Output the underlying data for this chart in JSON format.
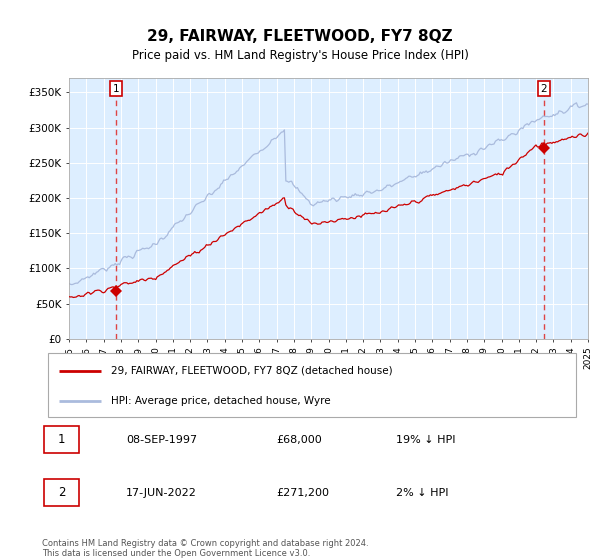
{
  "title": "29, FAIRWAY, FLEETWOOD, FY7 8QZ",
  "subtitle": "Price paid vs. HM Land Registry's House Price Index (HPI)",
  "bg_color": "#ddeeff",
  "hpi_color": "#aabbdd",
  "price_color": "#cc0000",
  "ylim": [
    0,
    370000
  ],
  "yticks": [
    0,
    50000,
    100000,
    150000,
    200000,
    250000,
    300000,
    350000
  ],
  "ytick_labels": [
    "£0",
    "£50K",
    "£100K",
    "£150K",
    "£200K",
    "£250K",
    "£300K",
    "£350K"
  ],
  "transaction1": {
    "date": "08-SEP-1997",
    "price": 68000,
    "label": "1",
    "pct": "19% ↓ HPI"
  },
  "transaction2": {
    "date": "17-JUN-2022",
    "price": 271200,
    "label": "2",
    "pct": "2% ↓ HPI"
  },
  "legend_label1": "29, FAIRWAY, FLEETWOOD, FY7 8QZ (detached house)",
  "legend_label2": "HPI: Average price, detached house, Wyre",
  "footnote": "Contains HM Land Registry data © Crown copyright and database right 2024.\nThis data is licensed under the Open Government Licence v3.0.",
  "x_start_year": 1995,
  "x_end_year": 2025
}
